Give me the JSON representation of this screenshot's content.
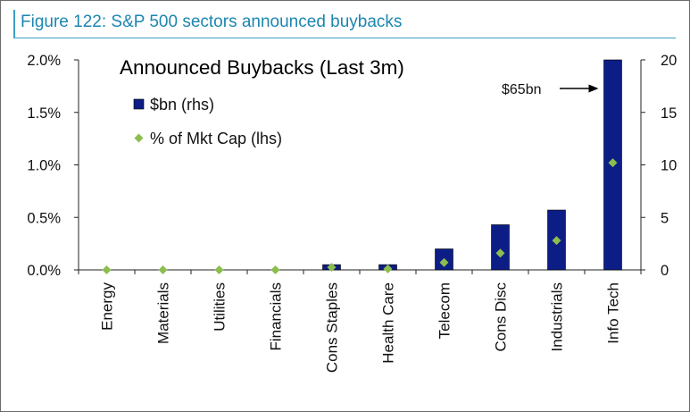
{
  "figure_title": "Figure 122: S&P 500 sectors announced buybacks",
  "chart_data": {
    "type": "bar",
    "title": "Announced Buybacks (Last 3m)",
    "categories": [
      "Energy",
      "Materials",
      "Utilities",
      "Financials",
      "Cons Staples",
      "Health Care",
      "Telecom",
      "Cons Disc",
      "Industrials",
      "Info Tech"
    ],
    "series": [
      {
        "name": "$bn (rhs)",
        "type": "bar",
        "axis": "right",
        "color": "#0d1d86",
        "values": [
          0,
          0,
          0,
          0,
          0.5,
          0.5,
          2.0,
          4.3,
          5.7,
          20
        ]
      },
      {
        "name": "% of Mkt Cap (lhs)",
        "type": "scatter",
        "axis": "left",
        "marker": "diamond",
        "color": "#8cbd4f",
        "values": [
          0.0,
          0.0,
          0.0,
          0.0,
          0.025,
          0.01,
          0.07,
          0.16,
          0.28,
          1.02
        ]
      }
    ],
    "y_left": {
      "range": [
        0,
        2.0
      ],
      "ticks": [
        "0.0%",
        "0.5%",
        "1.0%",
        "1.5%",
        "2.0%"
      ],
      "tick_values": [
        0,
        0.5,
        1.0,
        1.5,
        2.0
      ]
    },
    "y_right": {
      "range": [
        0,
        20
      ],
      "ticks": [
        "0",
        "5",
        "10",
        "15",
        "20"
      ],
      "tick_values": [
        0,
        5,
        10,
        15,
        20
      ]
    },
    "annotation": {
      "text": "$65bn",
      "target": "Info Tech",
      "arrow": "right"
    },
    "legend": "top-left",
    "grid": false
  }
}
